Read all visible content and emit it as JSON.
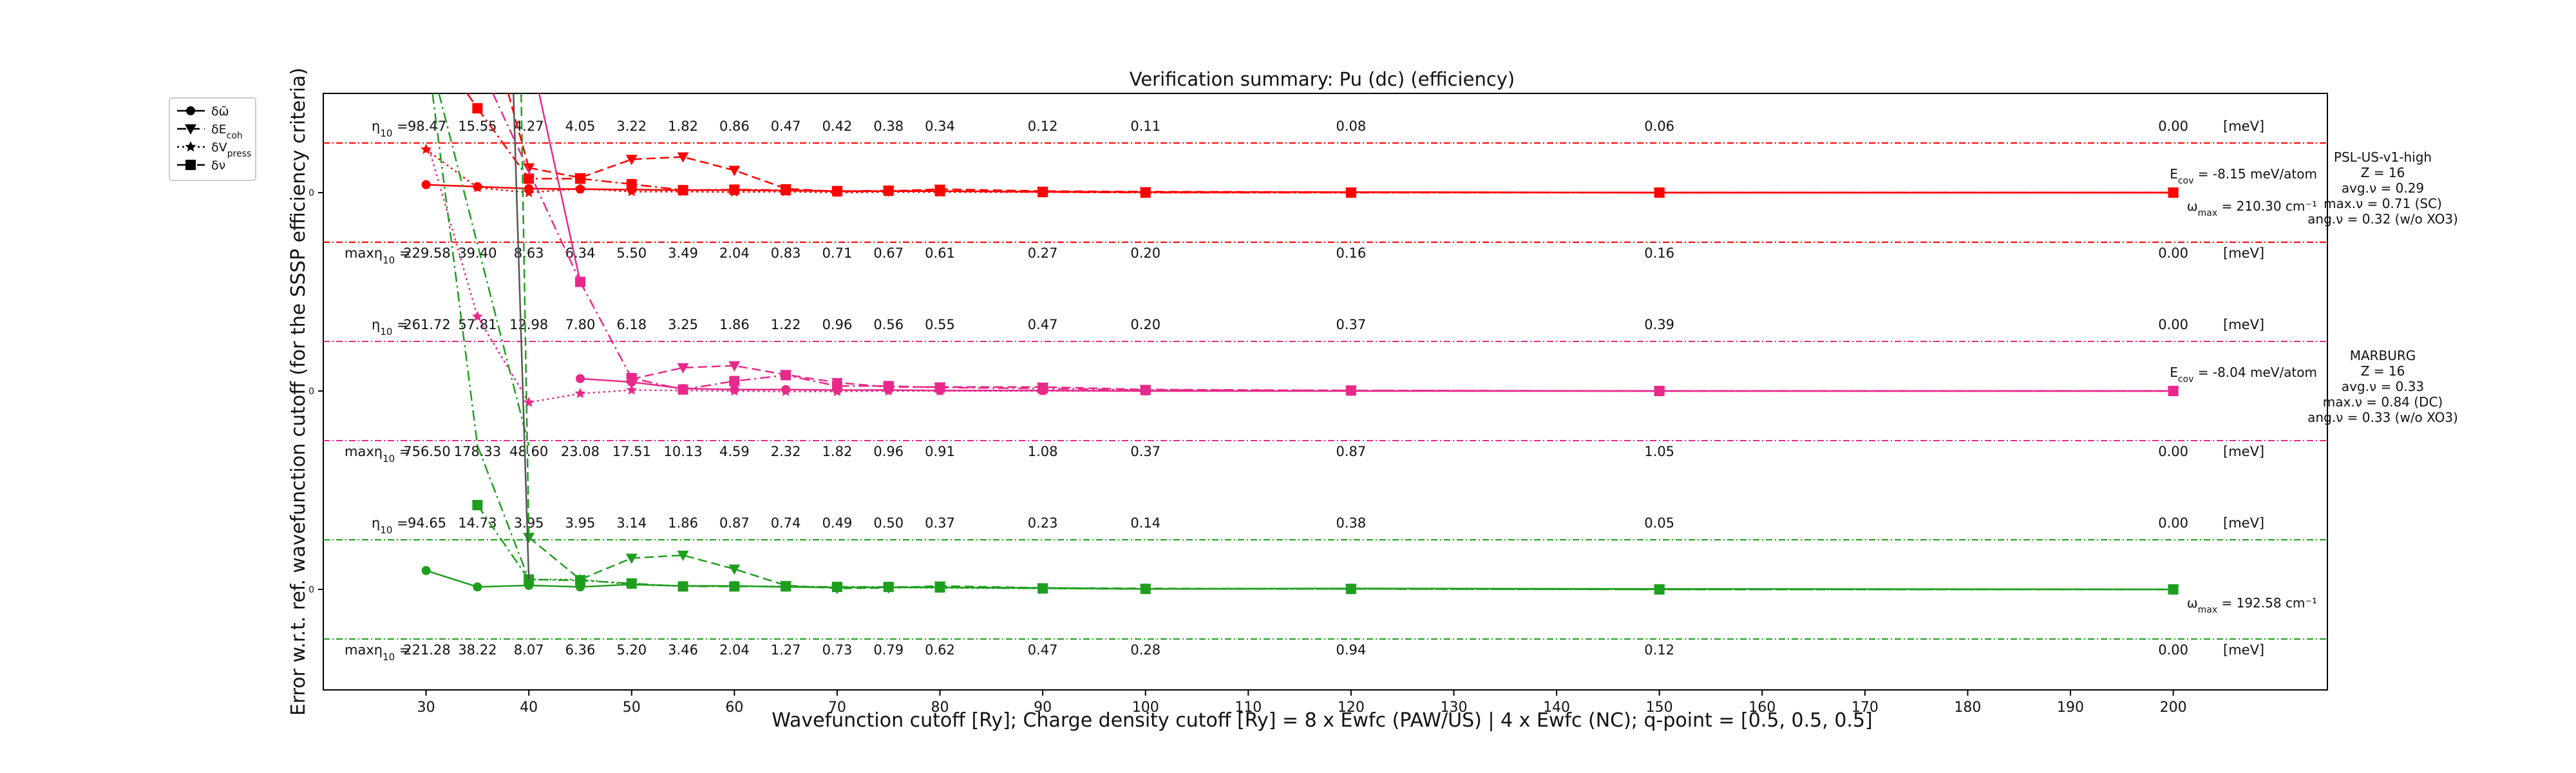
{
  "chart_data": {
    "type": "line",
    "title": "Verification summary: Pu (dc) (efficiency)",
    "xlabel": "Wavefunction cutoff [Ry]; Charge density cutoff [Ry] = 8 x Ewfc (PAW/US) | 4 x Ewfc (NC); q-point = [0.5, 0.5, 0.5]",
    "ylabel": "Error w.r.t. ref. wavefunction cutoff (for the SSSP efficiency criteria)",
    "xlim": [
      20,
      215
    ],
    "x_ticks": [
      30,
      40,
      50,
      60,
      70,
      80,
      90,
      100,
      110,
      120,
      130,
      140,
      150,
      160,
      170,
      180,
      190,
      200
    ],
    "cutoffs": [
      30,
      35,
      40,
      45,
      50,
      55,
      60,
      65,
      70,
      75,
      80,
      90,
      100,
      120,
      150,
      200
    ],
    "legend": {
      "position": "upper-left-outside",
      "entries": [
        {
          "label": "δω̃",
          "style": "solid",
          "marker": "circle"
        },
        {
          "label": "δE_coh",
          "style": "dashed",
          "marker": "triangle-down"
        },
        {
          "label": "δV_press",
          "style": "dotted",
          "marker": "star"
        },
        {
          "label": "δν",
          "style": "dashdot",
          "marker": "square"
        }
      ]
    },
    "panels": [
      {
        "name": "PSL-US-v1-high",
        "color": "#ff0000",
        "info": [
          "PSL-US-v1-high",
          "Z = 16",
          "avg.ν = 0.29",
          "max.ν = 0.71 (SC)",
          "ang.ν = 0.32 (w/o XO3)"
        ],
        "ecov_label": "E_cov = -8.15 meV/atom",
        "omega_label": "ω_max = 210.30 cm⁻¹",
        "eta_labels": [
          "98.47",
          "15.55",
          "4.27",
          "4.05",
          "3.22",
          "1.82",
          "0.86",
          "0.47",
          "0.42",
          "0.38",
          "0.34",
          "0.12",
          "0.11",
          "0.08",
          "0.06",
          "0.00"
        ],
        "max_eta_labels": [
          "229.58",
          "39.40",
          "8.63",
          "6.34",
          "5.50",
          "3.49",
          "2.04",
          "0.83",
          "0.71",
          "0.67",
          "0.61",
          "0.27",
          "0.20",
          "0.16",
          "0.16",
          "0.00"
        ],
        "series": {
          "omega": [
            0.16,
            0.12,
            0.08,
            0.07,
            0.06,
            0.05,
            0.05,
            0.04,
            0.03,
            0.03,
            0.03,
            0.02,
            0.01,
            0.01,
            0.0,
            0.0
          ],
          "ecoh": [
            null,
            null,
            0.5,
            0.3,
            0.67,
            0.72,
            0.45,
            0.08,
            0.02,
            0.03,
            0.07,
            0.03,
            0.02,
            0.01,
            0.0,
            0.0
          ],
          "vpress": [
            0.87,
            0.1,
            0.0,
            0.08,
            0.02,
            0.02,
            0.01,
            0.02,
            0.0,
            0.01,
            0.01,
            0.01,
            0.0,
            0.0,
            0.0,
            0.0
          ],
          "nu": [
            null,
            1.7,
            0.28,
            0.28,
            0.17,
            0.05,
            0.06,
            0.05,
            0.03,
            0.04,
            0.03,
            0.01,
            0.0,
            0.0,
            0.0,
            0.0
          ]
        }
      },
      {
        "name": "MARBURG",
        "color": "#e7298a",
        "info": [
          "MARBURG",
          "Z = 16",
          "avg.ν = 0.33",
          "max.ν = 0.84 (DC)",
          "ang.ν = 0.33 (w/o XO3)"
        ],
        "ecov_label": "E_cov = -8.04 meV/atom",
        "omega_label": "",
        "eta_labels": [
          "261.72",
          "57.81",
          "12.98",
          "7.80",
          "6.18",
          "3.25",
          "1.86",
          "1.22",
          "0.96",
          "0.56",
          "0.55",
          "0.47",
          "0.20",
          "0.37",
          "0.39",
          "0.00"
        ],
        "max_eta_labels": [
          "756.50",
          "178.33",
          "48.60",
          "23.08",
          "17.51",
          "10.13",
          "4.59",
          "2.32",
          "1.82",
          "0.96",
          "0.91",
          "1.08",
          "0.37",
          "0.87",
          "1.05",
          "0.00"
        ],
        "series": {
          "omega": [
            null,
            null,
            null,
            0.25,
            0.18,
            0.05,
            0.03,
            0.03,
            0.02,
            0.02,
            0.01,
            0.01,
            0.0,
            0.0,
            0.0,
            0.0
          ],
          "ecoh": [
            null,
            null,
            null,
            null,
            0.24,
            0.47,
            0.51,
            0.33,
            0.17,
            0.08,
            0.08,
            0.08,
            0.03,
            0.01,
            0.0,
            0.0
          ],
          "vpress": [
            null,
            1.5,
            -0.23,
            -0.05,
            0.02,
            0.01,
            0.0,
            -0.01,
            -0.01,
            0.0,
            0.0,
            0.0,
            0.0,
            0.0,
            0.0,
            0.0
          ],
          "nu": [
            null,
            null,
            null,
            2.2,
            0.26,
            0.03,
            0.2,
            0.32,
            0.1,
            0.1,
            0.07,
            0.05,
            0.02,
            0.01,
            0.0,
            0.0
          ]
        }
      },
      {
        "name": "",
        "color": "#1e9e1e",
        "info": [],
        "ecov_label": "",
        "omega_label": "ω_max = 192.58 cm⁻¹",
        "eta_labels": [
          "94.65",
          "14.73",
          "3.95",
          "3.95",
          "3.14",
          "1.86",
          "0.87",
          "0.74",
          "0.49",
          "0.50",
          "0.37",
          "0.23",
          "0.14",
          "0.38",
          "0.05",
          "0.00"
        ],
        "max_eta_labels": [
          "221.28",
          "38.22",
          "8.07",
          "6.36",
          "5.20",
          "3.46",
          "2.04",
          "1.27",
          "0.73",
          "0.79",
          "0.62",
          "0.47",
          "0.28",
          "0.94",
          "0.12",
          "0.00"
        ],
        "series": {
          "omega": [
            0.38,
            0.05,
            0.08,
            0.05,
            0.1,
            0.07,
            0.07,
            0.05,
            0.04,
            0.04,
            0.04,
            0.03,
            0.01,
            0.02,
            0.01,
            0.0
          ],
          "ecoh": [
            null,
            null,
            1.05,
            0.2,
            0.63,
            0.69,
            0.41,
            0.08,
            0.02,
            0.03,
            0.07,
            0.03,
            0.02,
            0.01,
            0.0,
            0.0
          ],
          "vpress": [
            null,
            null,
            0.2,
            0.2,
            0.1,
            0.07,
            0.07,
            0.05,
            0.04,
            0.04,
            0.03,
            0.02,
            0.01,
            0.01,
            0.0,
            0.0
          ],
          "nu": [
            null,
            1.7,
            0.2,
            0.18,
            0.12,
            0.06,
            0.06,
            0.06,
            0.05,
            0.05,
            0.04,
            0.02,
            0.01,
            0.01,
            0.0,
            0.0
          ]
        }
      }
    ],
    "steep_segments": {
      "green_dashdot": [
        [
          30,
          40
        ],
        [
          35,
          2.9
        ]
      ],
      "green_dashed": [
        [
          38,
          40
        ],
        [
          2.5,
          1.05
        ]
      ],
      "pink_dotted": [
        [
          30,
          40
        ],
        [
          35,
          1.5
        ]
      ]
    },
    "eta_prefix": "η₁₀ =",
    "max_eta_prefix": "maxη₁₀ =",
    "unit_label": "[meV]",
    "zero_tick": "0"
  }
}
